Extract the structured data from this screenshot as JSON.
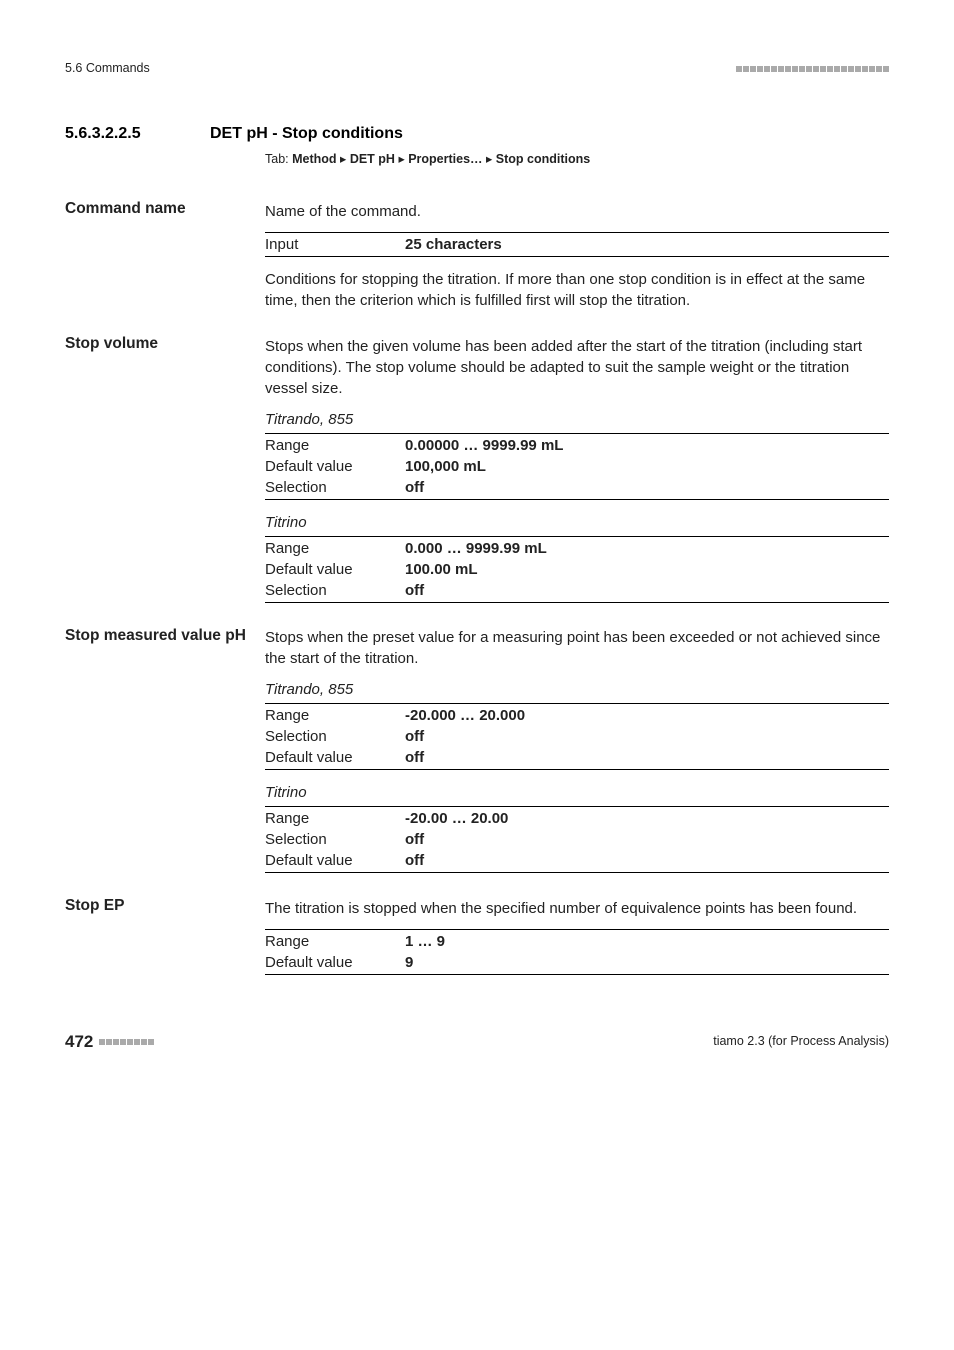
{
  "header": {
    "left": "5.6 Commands"
  },
  "section": {
    "number": "5.6.3.2.2.5",
    "title": "DET pH - Stop conditions"
  },
  "tab": {
    "label": "Tab:",
    "parts": [
      "Method",
      "DET pH",
      "Properties…",
      "Stop conditions"
    ],
    "sep": "▸"
  },
  "command_name": {
    "heading": "Command name",
    "desc": "Name of the command.",
    "input_label": "Input",
    "input_value": "25 characters",
    "body": "Conditions for stopping the titration. If more than one stop condition is in effect at the same time, then the criterion which is fulfilled first will stop the titration."
  },
  "stop_volume": {
    "heading": "Stop volume",
    "body": "Stops when the given volume has been added after the start of the titration (including start conditions). The stop volume should be adapted to suit the sample weight or the titration vessel size.",
    "groups": [
      {
        "subhead": "Titrando, 855",
        "rows": [
          {
            "k": "Range",
            "v": "0.00000 … 9999.99 mL"
          },
          {
            "k": "Default value",
            "v": "100,000 mL"
          },
          {
            "k": "Selection",
            "v": "off"
          }
        ]
      },
      {
        "subhead": "Titrino",
        "rows": [
          {
            "k": "Range",
            "v": "0.000 … 9999.99 mL"
          },
          {
            "k": "Default value",
            "v": "100.00 mL"
          },
          {
            "k": "Selection",
            "v": "off"
          }
        ]
      }
    ]
  },
  "stop_measured": {
    "heading": "Stop measured value pH",
    "body": "Stops when the preset value for a measuring point has been exceeded or not achieved since the start of the titration.",
    "groups": [
      {
        "subhead": "Titrando, 855",
        "rows": [
          {
            "k": "Range",
            "v": "-20.000 … 20.000"
          },
          {
            "k": "Selection",
            "v": "off"
          },
          {
            "k": "Default value",
            "v": "off"
          }
        ]
      },
      {
        "subhead": "Titrino",
        "rows": [
          {
            "k": "Range",
            "v": "-20.00 … 20.00"
          },
          {
            "k": "Selection",
            "v": "off"
          },
          {
            "k": "Default value",
            "v": "off"
          }
        ]
      }
    ]
  },
  "stop_ep": {
    "heading": "Stop EP",
    "body": "The titration is stopped when the specified number of equivalence points has been found.",
    "rows": [
      {
        "k": "Range",
        "v": "1 … 9"
      },
      {
        "k": "Default value",
        "v": "9"
      }
    ]
  },
  "footer": {
    "page": "472",
    "right": "tiamo 2.3 (for Process Analysis)"
  }
}
